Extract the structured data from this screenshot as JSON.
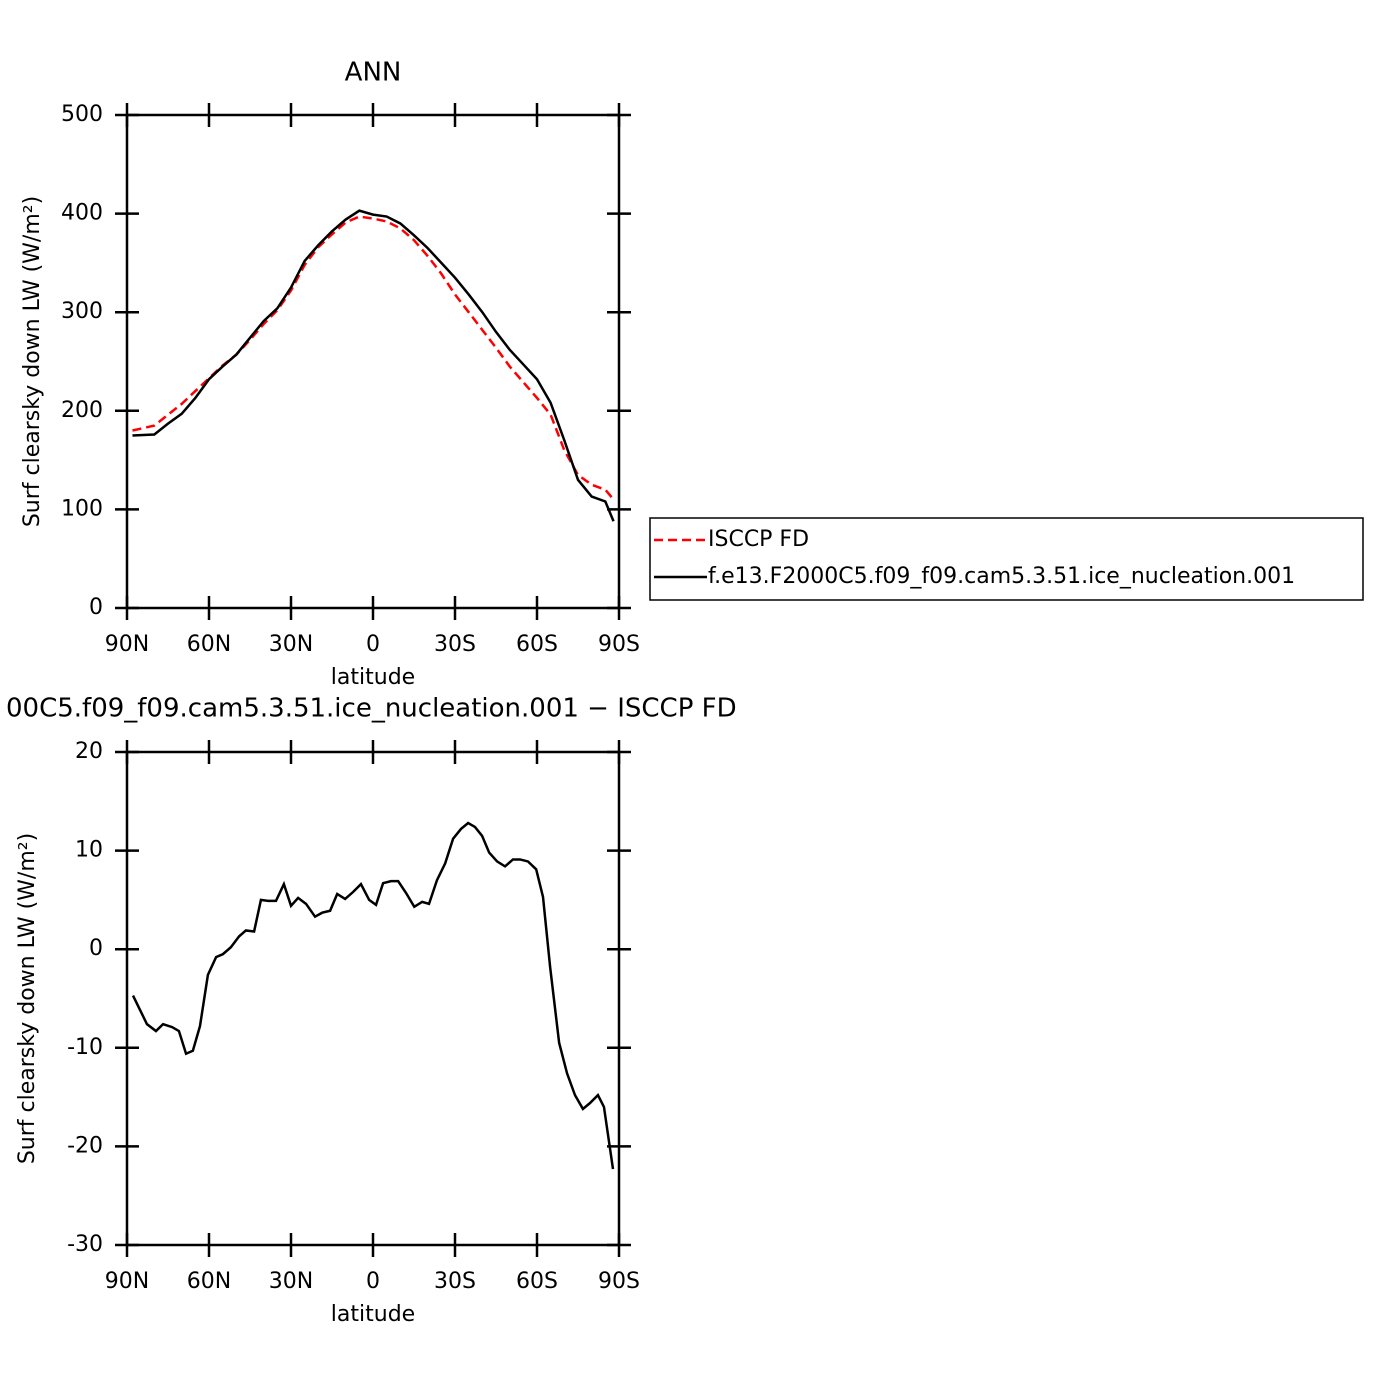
{
  "chart_data": [
    {
      "type": "line",
      "title": "ANN",
      "x_label": "latitude",
      "y_label": "Surf clearsky down LW (W/m²)",
      "x": [
        88,
        80,
        75,
        70,
        65,
        60,
        55,
        50,
        45,
        40,
        35,
        30,
        25,
        20,
        15,
        10,
        5,
        0,
        -5,
        -10,
        -15,
        -20,
        -25,
        -30,
        -35,
        -40,
        -45,
        -50,
        -55,
        -60,
        -65,
        -70,
        -75,
        -80,
        -85,
        -88
      ],
      "series": [
        {
          "name": "ISCCP FD",
          "color": "#ff0000",
          "line_style": "dashed",
          "values": [
            180,
            185,
            196,
            207,
            220,
            233,
            246,
            257,
            272,
            288,
            302,
            322,
            348,
            366,
            379,
            391,
            397,
            395,
            392,
            385,
            373,
            357,
            339,
            318,
            300,
            282,
            264,
            245,
            229,
            213,
            196,
            160,
            135,
            125,
            120,
            110
          ]
        },
        {
          "name": "f.e13.F2000C5.f09_f09.cam5.3.51.ice_nucleation.001",
          "color": "#000000",
          "line_style": "solid",
          "values": [
            175,
            176,
            187,
            197,
            213,
            232,
            245,
            257,
            274,
            291,
            304,
            325,
            352,
            368,
            382,
            394,
            403,
            399,
            397,
            390,
            378,
            365,
            350,
            335,
            318,
            300,
            280,
            262,
            247,
            232,
            208,
            170,
            130,
            113,
            108,
            88
          ]
        }
      ],
      "xlim": [
        90,
        -90
      ],
      "xticks": [
        {
          "value": 90,
          "label": "90N"
        },
        {
          "value": 60,
          "label": "60N"
        },
        {
          "value": 30,
          "label": "30N"
        },
        0,
        {
          "value": -30,
          "label": "30S"
        },
        {
          "value": -60,
          "label": "60S"
        },
        {
          "value": -90,
          "label": "90S"
        }
      ],
      "ylim": [
        0,
        500
      ],
      "yticks": [
        0,
        100,
        200,
        300,
        400,
        500
      ],
      "grid": false,
      "legend": "right"
    },
    {
      "type": "line",
      "title": "00C5.f09_f09.cam5.3.51.ice_nucleation.001 − ISCCP FD",
      "x_label": "latitude",
      "y_label": "Surf clearsky down LW (W/m²)",
      "x": [
        87.8,
        82.7,
        79.4,
        76.8,
        73.5,
        71.0,
        68.4,
        65.9,
        63.3,
        60.4,
        57.4,
        54.9,
        52.0,
        49.0,
        46.5,
        43.5,
        41.0,
        38.4,
        35.5,
        32.6,
        30.0,
        27.4,
        24.5,
        21.2,
        18.6,
        15.7,
        13.1,
        10.2,
        7.3,
        4.4,
        1.4,
        -1.1,
        -3.7,
        -6.6,
        -9.2,
        -12.1,
        -15.1,
        -18.0,
        -20.5,
        -23.4,
        -26.4,
        -29.3,
        -32.2,
        -34.8,
        -37.3,
        -39.9,
        -42.5,
        -45.4,
        -48.3,
        -51.2,
        -53.8,
        -56.7,
        -59.7,
        -62.2,
        -64.8,
        -68.1,
        -71.0,
        -73.9,
        -76.8,
        -79.4,
        -82.3,
        -84.5,
        -87.8
      ],
      "series": [
        {
          "color": "#000000",
          "line_style": "solid",
          "values": [
            -4.7,
            -7.6,
            -8.3,
            -7.6,
            -7.9,
            -8.3,
            -10.6,
            -10.3,
            -7.8,
            -2.6,
            -0.8,
            -0.5,
            0.2,
            1.3,
            1.9,
            1.8,
            5.0,
            4.9,
            4.9,
            6.6,
            4.4,
            5.2,
            4.6,
            3.3,
            3.7,
            3.9,
            5.6,
            5.1,
            5.8,
            6.6,
            5.0,
            4.5,
            6.7,
            6.9,
            6.9,
            5.7,
            4.3,
            4.8,
            4.6,
            7.0,
            8.7,
            11.2,
            12.2,
            12.8,
            12.4,
            11.5,
            9.8,
            8.9,
            8.4,
            9.1,
            9.1,
            8.9,
            8.1,
            5.3,
            -1.8,
            -9.5,
            -12.6,
            -14.8,
            -16.2,
            -15.6,
            -14.8,
            -16.0,
            -22.3
          ]
        }
      ],
      "xlim": [
        90,
        -90
      ],
      "xticks": [
        {
          "value": 90,
          "label": "90N"
        },
        {
          "value": 60,
          "label": "60N"
        },
        {
          "value": 30,
          "label": "30N"
        },
        0,
        {
          "value": -30,
          "label": "30S"
        },
        {
          "value": -60,
          "label": "60S"
        },
        {
          "value": -90,
          "label": "90S"
        }
      ],
      "ylim": [
        -30,
        20
      ],
      "yticks": [
        -30,
        -20,
        -10,
        0,
        10,
        20
      ],
      "grid": false
    }
  ]
}
